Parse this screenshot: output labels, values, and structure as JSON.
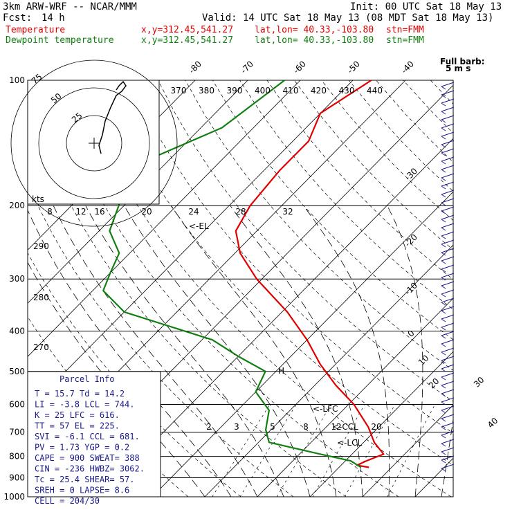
{
  "header": {
    "model": "3km ARW-WRF -- NCAR/MMM",
    "init": "Init: 00 UTC Sat 18 May 13",
    "fcst_label": "Fcst:",
    "fcst_value": "14 h",
    "valid": "Valid: 14 UTC Sat 18 May 13 (08 MDT Sat 18 May 13)",
    "legend": [
      {
        "name": "Temperature",
        "xy": "x,y=312.45,541.27",
        "latlon": "lat,lon= 40.33,-103.80",
        "stn": "stn=FMM",
        "color": "#e00000"
      },
      {
        "name": "Dewpoint temperature",
        "xy": "x,y=312.45,541.27",
        "latlon": "lat,lon= 40.33,-103.80",
        "stn": "stn=FMM",
        "color": "#108010"
      }
    ]
  },
  "chart_data": {
    "type": "line",
    "subtype": "skew-T log-p diagram",
    "pressure_axis": {
      "ticks": [
        100,
        200,
        300,
        400,
        500,
        600,
        700,
        800,
        900,
        1000
      ],
      "scale": "log",
      "range": [
        100,
        1000
      ]
    },
    "isotherm_labels": [
      -80,
      -70,
      -60,
      -50,
      -40,
      -30,
      -20,
      -10,
      0,
      10,
      20,
      30,
      40
    ],
    "theta_labels": [
      370,
      380,
      390,
      400,
      410,
      420,
      430,
      440
    ],
    "mixing_ratio_labels": [
      "2",
      "3",
      "5",
      "8",
      "12",
      "20"
    ],
    "scale_labels": [
      "8",
      "12",
      "16",
      "20",
      "24",
      "28",
      "32"
    ],
    "left_labels": [
      "290",
      "280",
      "270"
    ],
    "hodograph": {
      "rings": [
        "25",
        "50",
        "75"
      ],
      "units_label": "kts"
    },
    "wind_barb_label": [
      "Full barb:",
      "5 m s"
    ],
    "series": [
      {
        "name": "Temperature",
        "color": "#e00000",
        "points": [
          [
            100,
            -56.5
          ],
          [
            120,
            -60
          ],
          [
            140,
            -57
          ],
          [
            165,
            -57
          ],
          [
            200,
            -56
          ],
          [
            230,
            -54
          ],
          [
            260,
            -49
          ],
          [
            300,
            -41
          ],
          [
            360,
            -29
          ],
          [
            420,
            -20
          ],
          [
            480,
            -13
          ],
          [
            540,
            -6
          ],
          [
            600,
            1
          ],
          [
            680,
            8
          ],
          [
            740,
            12
          ],
          [
            790,
            16
          ],
          [
            820,
            14
          ],
          [
            840,
            13
          ],
          [
            850,
            15.7
          ]
        ]
      },
      {
        "name": "Dewpoint temperature",
        "color": "#108010",
        "points": [
          [
            100,
            -73
          ],
          [
            130,
            -76
          ],
          [
            155,
            -84
          ],
          [
            175,
            -84
          ],
          [
            200,
            -81
          ],
          [
            230,
            -78
          ],
          [
            260,
            -72
          ],
          [
            290,
            -70
          ],
          [
            320,
            -68
          ],
          [
            360,
            -60
          ],
          [
            420,
            -38
          ],
          [
            460,
            -30
          ],
          [
            500,
            -22
          ],
          [
            560,
            -20
          ],
          [
            620,
            -14
          ],
          [
            690,
            -11
          ],
          [
            740,
            -8
          ],
          [
            790,
            4
          ],
          [
            820,
            11
          ],
          [
            850,
            14.2
          ]
        ]
      }
    ],
    "annotations": [
      "<-EL",
      "<-LFC",
      "<-CCL",
      "<-LCL",
      "H"
    ]
  },
  "parcel_info": {
    "title": "Parcel Info",
    "rows": [
      "T  =   15.7  Td =  14.2",
      "LI =   -3.8  LCL =  744.",
      "K  =     25  LFC =  616.",
      "TT =     57  EL  =  225.",
      "SVI =  -6.1  CCL =  681.",
      "PV =   1.73  YGP =   0.2",
      "CAPE =  900  SWEAT=  388",
      "CIN =  -236  HWBZ= 3062.",
      "Tc =   25.4  SHEAR=  57.",
      "SREH =    0  LAPSE=  8.6",
      "CELL = 204/30"
    ]
  }
}
